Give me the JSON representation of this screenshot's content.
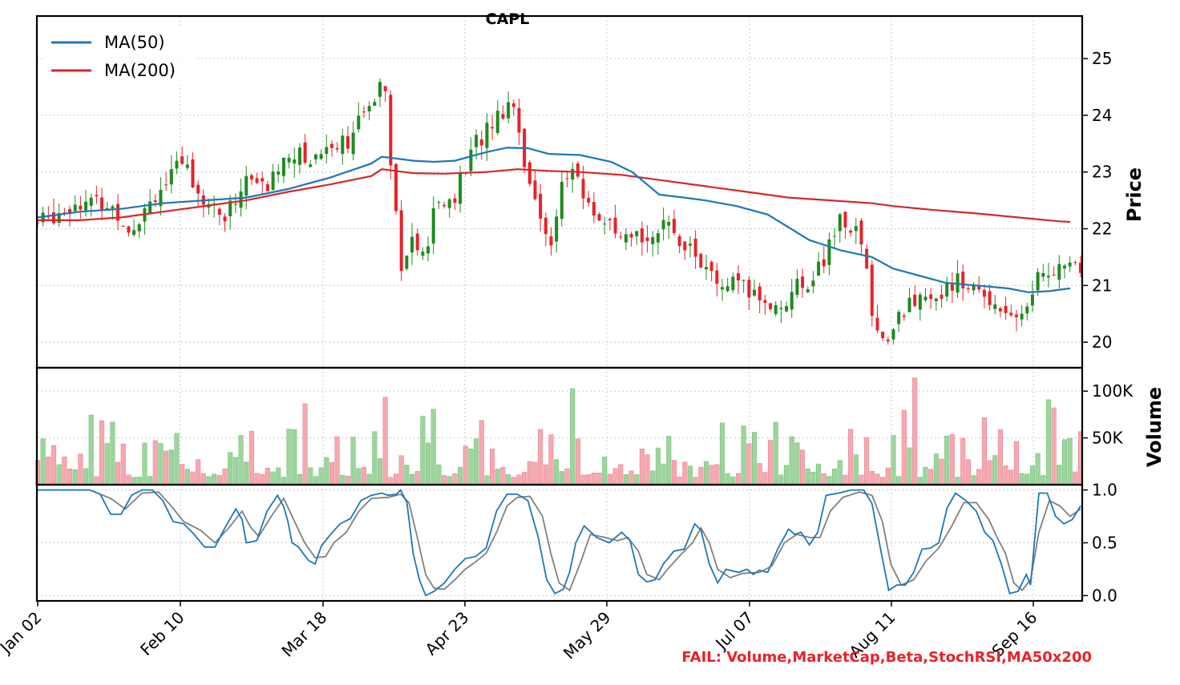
{
  "chart_data": {
    "type": "candlestick",
    "title": "CAPL",
    "x_ticks": [
      "Jan 02",
      "Feb 10",
      "Mar 18",
      "Apr 23",
      "May 29",
      "Jul 07",
      "Aug 11",
      "Sep 16"
    ],
    "colors": {
      "up": "#1f8a1f",
      "down": "#e8222a",
      "ma50": "#1f77b4",
      "ma200": "#d62728",
      "stoch_d": "#808080",
      "vol_up": "#9ed49e",
      "vol_down": "#f6a8b0",
      "fail": "#e8222a"
    },
    "price_panel": {
      "ylabel": "Price",
      "yticks": [
        "20",
        "21",
        "22",
        "23",
        "24",
        "25"
      ],
      "ylim": [
        19.55,
        25.75
      ],
      "legend": [
        {
          "label": "MA(50)",
          "color": "#1f77b4"
        },
        {
          "label": "MA(200)",
          "color": "#d62728"
        }
      ],
      "legend_position": "upper-left",
      "ma50": [
        [
          0,
          22.2
        ],
        [
          20,
          22.3
        ],
        [
          40,
          22.35
        ],
        [
          60,
          22.45
        ],
        [
          80,
          22.5
        ],
        [
          100,
          22.55
        ],
        [
          120,
          22.7
        ],
        [
          140,
          22.9
        ],
        [
          160,
          23.15
        ],
        [
          165,
          23.27
        ],
        [
          180,
          23.2
        ],
        [
          190,
          23.18
        ],
        [
          200,
          23.2
        ],
        [
          215,
          23.35
        ],
        [
          225,
          23.43
        ],
        [
          235,
          23.42
        ],
        [
          245,
          23.32
        ],
        [
          260,
          23.3
        ],
        [
          275,
          23.18
        ],
        [
          285,
          23.0
        ],
        [
          298,
          22.6
        ],
        [
          310,
          22.55
        ],
        [
          320,
          22.5
        ],
        [
          335,
          22.4
        ],
        [
          350,
          22.25
        ],
        [
          370,
          21.8
        ],
        [
          385,
          21.62
        ],
        [
          400,
          21.5
        ],
        [
          410,
          21.3
        ],
        [
          420,
          21.2
        ],
        [
          435,
          21.05
        ],
        [
          450,
          21.0
        ],
        [
          465,
          20.95
        ],
        [
          475,
          20.88
        ],
        [
          485,
          20.9
        ],
        [
          495,
          20.95
        ]
      ],
      "ma200": [
        [
          0,
          22.15
        ],
        [
          20,
          22.15
        ],
        [
          40,
          22.2
        ],
        [
          60,
          22.3
        ],
        [
          80,
          22.4
        ],
        [
          100,
          22.5
        ],
        [
          120,
          22.65
        ],
        [
          140,
          22.78
        ],
        [
          160,
          22.93
        ],
        [
          165,
          23.05
        ],
        [
          180,
          22.98
        ],
        [
          195,
          22.97
        ],
        [
          215,
          23.0
        ],
        [
          230,
          23.05
        ],
        [
          245,
          23.02
        ],
        [
          260,
          23.0
        ],
        [
          280,
          22.95
        ],
        [
          300,
          22.85
        ],
        [
          320,
          22.75
        ],
        [
          340,
          22.65
        ],
        [
          360,
          22.55
        ],
        [
          380,
          22.5
        ],
        [
          400,
          22.45
        ],
        [
          410,
          22.4
        ],
        [
          430,
          22.33
        ],
        [
          450,
          22.27
        ],
        [
          470,
          22.2
        ],
        [
          490,
          22.13
        ],
        [
          495,
          22.12
        ]
      ]
    },
    "volume_panel": {
      "ylabel": "Volume",
      "yticks": [
        "50K",
        "100K"
      ],
      "ylim": [
        0,
        125000
      ]
    },
    "stoch_panel": {
      "yticks": [
        "0.0",
        "0.5",
        "1.0"
      ],
      "ylim": [
        -0.05,
        1.05
      ],
      "k": [
        [
          0,
          1
        ],
        [
          25,
          1
        ],
        [
          30,
          0.96
        ],
        [
          35,
          0.77
        ],
        [
          40,
          0.77
        ],
        [
          45,
          0.95
        ],
        [
          50,
          1
        ],
        [
          55,
          1
        ],
        [
          60,
          0.9
        ],
        [
          65,
          0.7
        ],
        [
          70,
          0.68
        ],
        [
          75,
          0.58
        ],
        [
          80,
          0.46
        ],
        [
          85,
          0.46
        ],
        [
          90,
          0.65
        ],
        [
          95,
          0.82
        ],
        [
          98,
          0.72
        ],
        [
          100,
          0.5
        ],
        [
          105,
          0.52
        ],
        [
          110,
          0.8
        ],
        [
          115,
          0.95
        ],
        [
          118,
          0.84
        ],
        [
          120,
          0.7
        ],
        [
          122,
          0.5
        ],
        [
          125,
          0.46
        ],
        [
          128,
          0.38
        ],
        [
          130,
          0.33
        ],
        [
          133,
          0.3
        ],
        [
          136,
          0.47
        ],
        [
          140,
          0.57
        ],
        [
          145,
          0.68
        ],
        [
          150,
          0.73
        ],
        [
          155,
          0.9
        ],
        [
          160,
          0.95
        ],
        [
          165,
          0.97
        ],
        [
          168,
          0.95
        ],
        [
          172,
          0.96
        ],
        [
          174,
          1
        ],
        [
          177,
          0.88
        ],
        [
          180,
          0.4
        ],
        [
          183,
          0.15
        ],
        [
          186,
          0
        ],
        [
          190,
          0.04
        ],
        [
          195,
          0.12
        ],
        [
          200,
          0.25
        ],
        [
          205,
          0.35
        ],
        [
          210,
          0.37
        ],
        [
          215,
          0.45
        ],
        [
          220,
          0.8
        ],
        [
          225,
          0.96
        ],
        [
          230,
          0.96
        ],
        [
          235,
          0.9
        ],
        [
          240,
          0.55
        ],
        [
          244,
          0.15
        ],
        [
          248,
          0.02
        ],
        [
          252,
          0.06
        ],
        [
          255,
          0.22
        ],
        [
          258,
          0.5
        ],
        [
          262,
          0.66
        ],
        [
          268,
          0.55
        ],
        [
          274,
          0.5
        ],
        [
          280,
          0.6
        ],
        [
          284,
          0.52
        ],
        [
          288,
          0.2
        ],
        [
          292,
          0.13
        ],
        [
          296,
          0.15
        ],
        [
          300,
          0.3
        ],
        [
          305,
          0.42
        ],
        [
          310,
          0.44
        ],
        [
          315,
          0.68
        ],
        [
          318,
          0.62
        ],
        [
          322,
          0.3
        ],
        [
          326,
          0.12
        ],
        [
          330,
          0.25
        ],
        [
          336,
          0.22
        ],
        [
          340,
          0.25
        ],
        [
          343,
          0.2
        ],
        [
          346,
          0.24
        ],
        [
          350,
          0.22
        ],
        [
          355,
          0.45
        ],
        [
          360,
          0.63
        ],
        [
          363,
          0.58
        ],
        [
          366,
          0.6
        ],
        [
          370,
          0.48
        ],
        [
          374,
          0.6
        ],
        [
          378,
          0.95
        ],
        [
          384,
          0.97
        ],
        [
          390,
          1
        ],
        [
          396,
          1
        ],
        [
          400,
          0.87
        ],
        [
          404,
          0.45
        ],
        [
          408,
          0.05
        ],
        [
          412,
          0.1
        ],
        [
          416,
          0.1
        ],
        [
          420,
          0.22
        ],
        [
          424,
          0.44
        ],
        [
          428,
          0.45
        ],
        [
          432,
          0.5
        ],
        [
          436,
          0.83
        ],
        [
          440,
          0.97
        ],
        [
          445,
          0.9
        ],
        [
          450,
          0.8
        ],
        [
          454,
          0.6
        ],
        [
          458,
          0.52
        ],
        [
          462,
          0.3
        ],
        [
          466,
          0.02
        ],
        [
          470,
          0.04
        ],
        [
          474,
          0.2
        ],
        [
          476,
          0.1
        ],
        [
          480,
          0.97
        ],
        [
          484,
          0.97
        ],
        [
          488,
          0.75
        ],
        [
          492,
          0.68
        ],
        [
          496,
          0.72
        ],
        [
          500,
          0.85
        ]
      ],
      "d": [
        [
          0,
          1
        ],
        [
          25,
          1
        ],
        [
          35,
          0.92
        ],
        [
          42,
          0.82
        ],
        [
          50,
          0.97
        ],
        [
          58,
          0.98
        ],
        [
          64,
          0.85
        ],
        [
          70,
          0.7
        ],
        [
          78,
          0.62
        ],
        [
          85,
          0.5
        ],
        [
          92,
          0.65
        ],
        [
          98,
          0.8
        ],
        [
          102,
          0.65
        ],
        [
          106,
          0.56
        ],
        [
          112,
          0.75
        ],
        [
          118,
          0.92
        ],
        [
          122,
          0.75
        ],
        [
          128,
          0.5
        ],
        [
          133,
          0.36
        ],
        [
          138,
          0.37
        ],
        [
          142,
          0.5
        ],
        [
          148,
          0.6
        ],
        [
          154,
          0.8
        ],
        [
          160,
          0.92
        ],
        [
          168,
          0.93
        ],
        [
          174,
          0.96
        ],
        [
          178,
          0.88
        ],
        [
          182,
          0.55
        ],
        [
          186,
          0.2
        ],
        [
          190,
          0.07
        ],
        [
          195,
          0.06
        ],
        [
          200,
          0.15
        ],
        [
          205,
          0.25
        ],
        [
          210,
          0.32
        ],
        [
          215,
          0.4
        ],
        [
          220,
          0.6
        ],
        [
          225,
          0.85
        ],
        [
          230,
          0.93
        ],
        [
          236,
          0.94
        ],
        [
          242,
          0.75
        ],
        [
          246,
          0.4
        ],
        [
          250,
          0.12
        ],
        [
          255,
          0.05
        ],
        [
          260,
          0.3
        ],
        [
          265,
          0.58
        ],
        [
          272,
          0.55
        ],
        [
          278,
          0.52
        ],
        [
          283,
          0.55
        ],
        [
          288,
          0.42
        ],
        [
          292,
          0.2
        ],
        [
          298,
          0.15
        ],
        [
          302,
          0.25
        ],
        [
          308,
          0.38
        ],
        [
          314,
          0.5
        ],
        [
          318,
          0.64
        ],
        [
          322,
          0.5
        ],
        [
          326,
          0.25
        ],
        [
          332,
          0.17
        ],
        [
          338,
          0.21
        ],
        [
          346,
          0.22
        ],
        [
          352,
          0.28
        ],
        [
          358,
          0.5
        ],
        [
          364,
          0.58
        ],
        [
          370,
          0.55
        ],
        [
          375,
          0.55
        ],
        [
          380,
          0.8
        ],
        [
          386,
          0.93
        ],
        [
          394,
          0.98
        ],
        [
          400,
          0.95
        ],
        [
          405,
          0.7
        ],
        [
          409,
          0.3
        ],
        [
          414,
          0.1
        ],
        [
          420,
          0.15
        ],
        [
          426,
          0.33
        ],
        [
          432,
          0.45
        ],
        [
          438,
          0.65
        ],
        [
          444,
          0.88
        ],
        [
          450,
          0.88
        ],
        [
          456,
          0.72
        ],
        [
          460,
          0.55
        ],
        [
          464,
          0.4
        ],
        [
          468,
          0.12
        ],
        [
          472,
          0.05
        ],
        [
          476,
          0.15
        ],
        [
          480,
          0.6
        ],
        [
          485,
          0.9
        ],
        [
          490,
          0.85
        ],
        [
          495,
          0.75
        ],
        [
          500,
          0.82
        ]
      ]
    }
  },
  "footer": {
    "fail_text": "FAIL: Volume,MarketCap,Beta,StochRSI,MA50x200"
  }
}
